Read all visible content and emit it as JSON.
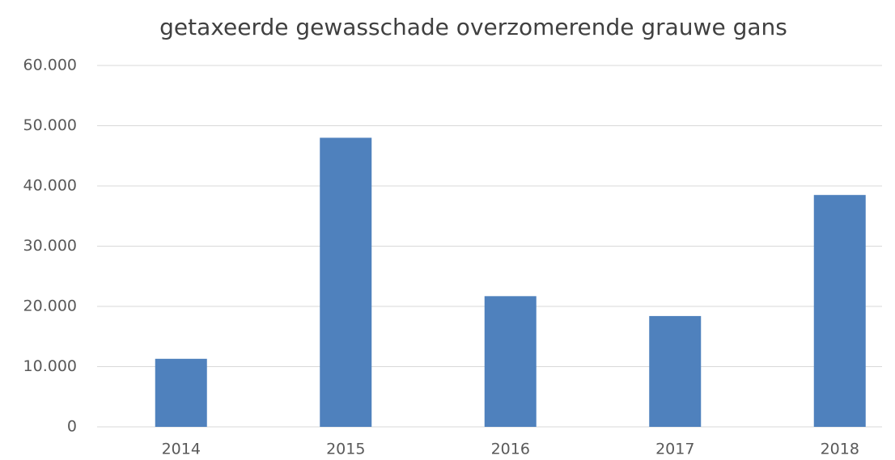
{
  "chart_data": {
    "type": "bar",
    "title": "getaxeerde gewasschade overzomerende grauwe gans",
    "categories": [
      "2014",
      "2015",
      "2016",
      "2017",
      "2018"
    ],
    "values": [
      11300,
      48000,
      21700,
      18400,
      38500
    ],
    "color": "#4f81bd",
    "ylim": [
      0,
      60000
    ],
    "yticks": [
      0,
      {
        "value": 10000,
        "label": "10.000"
      },
      {
        "value": 20000,
        "label": "20.000"
      },
      {
        "value": 30000,
        "label": "30.000"
      },
      {
        "value": 40000,
        "label": "40.000"
      },
      {
        "value": 50000,
        "label": "50.000"
      },
      {
        "value": 60000,
        "label": "60.000"
      }
    ],
    "grid": true
  }
}
